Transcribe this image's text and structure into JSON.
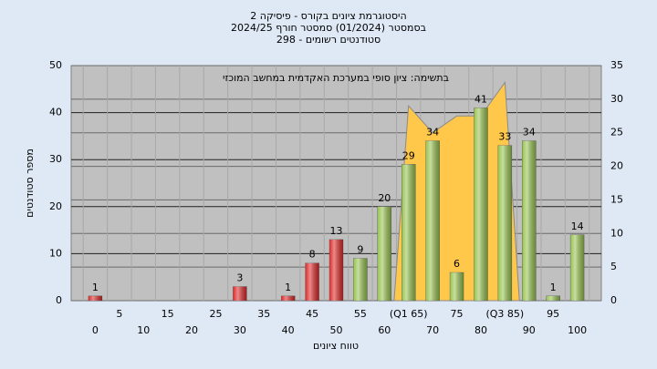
{
  "chart_data": {
    "type": "bar",
    "title_lines": [
      "היסטוגרמת ציונים בקורס - פיסיקה 2",
      "בסמסטר  (01/2024)  סמסטר חורף 2024/25",
      "סטודנטים רשומים - 298"
    ],
    "annotation": "בתשימה: ציון סופי במערכת האקדמית במחשב המוכזי",
    "x_label": "טווח ציונים",
    "y_label": "מספר סטודנטים",
    "categories": [
      "0",
      "5",
      "10",
      "15",
      "20",
      "25",
      "30",
      "35",
      "40",
      "45",
      "50",
      "55",
      "60",
      "(Q1 65)",
      "70",
      "75",
      "80",
      "(Q3 85)",
      "90",
      "95",
      "100"
    ],
    "values": [
      1,
      0,
      0,
      0,
      0,
      0,
      3,
      0,
      1,
      8,
      13,
      9,
      20,
      29,
      34,
      6,
      41,
      33,
      34,
      1,
      14
    ],
    "colors": [
      "#e02828",
      "#e02828",
      "#e02828",
      "#e02828",
      "#e02828",
      "#e02828",
      "#e02828",
      "#e02828",
      "#e02828",
      "#e02828",
      "#e02828",
      "#98c450",
      "#98c450",
      "#98c450",
      "#98c450",
      "#98c450",
      "#98c450",
      "#98c450",
      "#98c450",
      "#98c450",
      "#98c450"
    ],
    "series": [
      {
        "axis": "y2",
        "color": "#ffc84a",
        "values": [
          null,
          null,
          null,
          null,
          null,
          null,
          null,
          null,
          null,
          null,
          null,
          null,
          null,
          29,
          25,
          27.5,
          27.5,
          32.5,
          null,
          null,
          null
        ]
      }
    ],
    "ylim": [
      0,
      50
    ],
    "yticks": [
      0,
      10,
      20,
      30,
      40,
      50
    ],
    "y2lim": [
      0,
      35
    ],
    "y2ticks": [
      0,
      5,
      10,
      15,
      20,
      25,
      30,
      35
    ],
    "grid": true
  }
}
